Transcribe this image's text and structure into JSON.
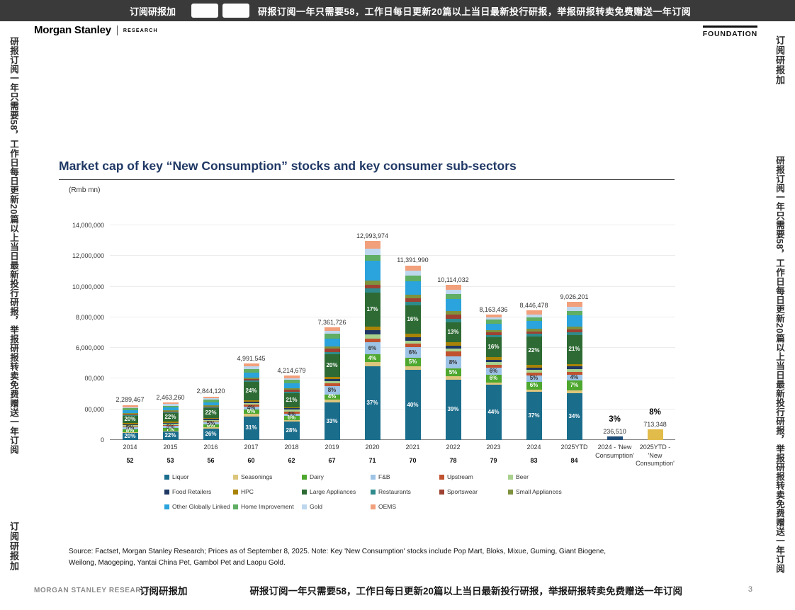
{
  "banner": {
    "left_label": "订阅研报加",
    "message": "研报订阅一年只需要58，工作日每日更新20篇以上当日最新投行研报，举报研报转卖免费赠送一年订阅"
  },
  "watermarks": {
    "long": "研报订阅一年只需要58，工作日每日更新20篇以上当日最新投行研报，举报研报转卖免费赠送一年订阅",
    "short": "订阅研报加"
  },
  "header": {
    "brand": "Morgan Stanley",
    "research": "RESEARCH",
    "foundation": "FOUNDATION"
  },
  "title": {
    "text": "Market cap of key “New Consumption” stocks and key consumer sub-sectors"
  },
  "chart_data": {
    "type": "bar",
    "stacked": true,
    "title": "Market cap of key “New Consumption” stocks and key consumer sub-sectors",
    "unit_label": "(Rmb mn)",
    "ylim": [
      0,
      14000000
    ],
    "y_ticks": [
      {
        "v": 14000000,
        "label": "14,000,000"
      },
      {
        "v": 12000000,
        "label": "12,000,000"
      },
      {
        "v": 10000000,
        "label": "10,000,000"
      },
      {
        "v": 8000000,
        "label": "8,000,000"
      },
      {
        "v": 6000000,
        "label": "6,000,000"
      },
      {
        "v": 4000000,
        "label": "00,000"
      },
      {
        "v": 2000000,
        "label": "00,000"
      },
      {
        "v": 0,
        "label": "0"
      }
    ],
    "series": [
      {
        "name": "Liquor",
        "color": "#1B6D8C"
      },
      {
        "name": "Seasonings",
        "color": "#DCC57C"
      },
      {
        "name": "Dairy",
        "color": "#4EA72E"
      },
      {
        "name": "F&B",
        "color": "#9DC3E6"
      },
      {
        "name": "Upstream",
        "color": "#C0522F"
      },
      {
        "name": "Beer",
        "color": "#A9D18E"
      },
      {
        "name": "Food Retailers",
        "color": "#1F3864"
      },
      {
        "name": "HPC",
        "color": "#A98307"
      },
      {
        "name": "Large Appliances",
        "color": "#2E6B34"
      },
      {
        "name": "Restaurants",
        "color": "#2F8B8B"
      },
      {
        "name": "Sportswear",
        "color": "#9E4132"
      },
      {
        "name": "Small Appliances",
        "color": "#7F923D"
      },
      {
        "name": "Other Globally Linked",
        "color": "#2BA3DC"
      },
      {
        "name": "Home Improvement",
        "color": "#5FAE63"
      },
      {
        "name": "Gold",
        "color": "#BDD7EE"
      },
      {
        "name": "OEMS",
        "color": "#F2A07B"
      }
    ],
    "bars": [
      {
        "label": "2014",
        "count": "52",
        "total": 2289467,
        "total_label": "2,289,467",
        "segments_pct": [
          20,
          3,
          8,
          5,
          3,
          3,
          3,
          3,
          20,
          2,
          3,
          3,
          8,
          6,
          4,
          6
        ],
        "pct_labels": [
          {
            "index": 0,
            "text": "20%",
            "color": "#ffffff"
          },
          {
            "index": 2,
            "text": "8%",
            "color": "#ffffff"
          },
          {
            "index": 3,
            "text": "5%",
            "color": "#333333"
          },
          {
            "index": 8,
            "text": "20%",
            "color": "#ffffff"
          }
        ]
      },
      {
        "label": "2015",
        "count": "53",
        "total": 2463260,
        "total_label": "2,463,260",
        "segments_pct": [
          22,
          3,
          7,
          5,
          3,
          3,
          3,
          3,
          22,
          2,
          3,
          3,
          7,
          5,
          4,
          5
        ],
        "pct_labels": [
          {
            "index": 0,
            "text": "22%",
            "color": "#ffffff"
          },
          {
            "index": 2,
            "text": "7%",
            "color": "#ffffff"
          },
          {
            "index": 3,
            "text": "5%",
            "color": "#333333"
          },
          {
            "index": 8,
            "text": "22%",
            "color": "#ffffff"
          }
        ]
      },
      {
        "label": "2016",
        "count": "56",
        "total": 2844120,
        "total_label": "2,844,120",
        "segments_pct": [
          26,
          3,
          6,
          5,
          3,
          3,
          3,
          2,
          22,
          2,
          2,
          3,
          7,
          5,
          4,
          4
        ],
        "pct_labels": [
          {
            "index": 0,
            "text": "26%",
            "color": "#ffffff"
          },
          {
            "index": 2,
            "text": "6%",
            "color": "#ffffff"
          },
          {
            "index": 3,
            "text": "5%",
            "color": "#333333"
          },
          {
            "index": 8,
            "text": "22%",
            "color": "#ffffff"
          }
        ]
      },
      {
        "label": "2017",
        "count": "60",
        "total": 4991545,
        "total_label": "4,991,545",
        "segments_pct": [
          31,
          3,
          6,
          4,
          2,
          2,
          2,
          2,
          24,
          2,
          2,
          2,
          6,
          5,
          3,
          4
        ],
        "pct_labels": [
          {
            "index": 0,
            "text": "31%",
            "color": "#ffffff"
          },
          {
            "index": 2,
            "text": "6%",
            "color": "#ffffff"
          },
          {
            "index": 3,
            "text": "4%",
            "color": "#333333"
          },
          {
            "index": 8,
            "text": "24%",
            "color": "#ffffff"
          }
        ]
      },
      {
        "label": "2018",
        "count": "62",
        "total": 4214679,
        "total_label": "4,214,679",
        "segments_pct": [
          28,
          3,
          6,
          4,
          3,
          3,
          2,
          2,
          21,
          3,
          3,
          2,
          8,
          5,
          3,
          4
        ],
        "pct_labels": [
          {
            "index": 0,
            "text": "28%",
            "color": "#ffffff"
          },
          {
            "index": 2,
            "text": "6%",
            "color": "#ffffff"
          },
          {
            "index": 3,
            "text": "4%",
            "color": "#333333"
          },
          {
            "index": 8,
            "text": "21%",
            "color": "#ffffff"
          }
        ]
      },
      {
        "label": "2019",
        "count": "67",
        "total": 7361726,
        "total_label": "7,361,726",
        "segments_pct": [
          33,
          3,
          4,
          8,
          2,
          2,
          2,
          2,
          20,
          2,
          3,
          2,
          7,
          4,
          3,
          3
        ],
        "pct_labels": [
          {
            "index": 0,
            "text": "33%",
            "color": "#ffffff"
          },
          {
            "index": 2,
            "text": "4%",
            "color": "#ffffff"
          },
          {
            "index": 3,
            "text": "8%",
            "color": "#333333"
          },
          {
            "index": 8,
            "text": "20%",
            "color": "#ffffff"
          }
        ]
      },
      {
        "label": "2020",
        "count": "71",
        "total": 12993974,
        "total_label": "12,993,974",
        "segments_pct": [
          37,
          2,
          4,
          6,
          2,
          2,
          2,
          2,
          17,
          2,
          2,
          2,
          10,
          3,
          3,
          4
        ],
        "pct_labels": [
          {
            "index": 0,
            "text": "37%",
            "color": "#ffffff"
          },
          {
            "index": 2,
            "text": "4%",
            "color": "#ffffff"
          },
          {
            "index": 3,
            "text": "6%",
            "color": "#333333"
          },
          {
            "index": 8,
            "text": "17%",
            "color": "#ffffff"
          }
        ]
      },
      {
        "label": "2021",
        "count": "70",
        "total": 11391990,
        "total_label": "11,391,990",
        "segments_pct": [
          40,
          2,
          5,
          6,
          2,
          2,
          2,
          2,
          16,
          2,
          2,
          2,
          8,
          3,
          3,
          3
        ],
        "pct_labels": [
          {
            "index": 0,
            "text": "40%",
            "color": "#ffffff"
          },
          {
            "index": 2,
            "text": "5%",
            "color": "#ffffff"
          },
          {
            "index": 3,
            "text": "6%",
            "color": "#333333"
          },
          {
            "index": 8,
            "text": "16%",
            "color": "#ffffff"
          }
        ]
      },
      {
        "label": "2022",
        "count": "78",
        "total": 10114032,
        "total_label": "10,114,032",
        "segments_pct": [
          39,
          2,
          5,
          8,
          3,
          2,
          2,
          2,
          13,
          2,
          3,
          2,
          8,
          3,
          3,
          3
        ],
        "pct_labels": [
          {
            "index": 0,
            "text": "39%",
            "color": "#ffffff"
          },
          {
            "index": 2,
            "text": "5%",
            "color": "#ffffff"
          },
          {
            "index": 3,
            "text": "8%",
            "color": "#333333"
          },
          {
            "index": 8,
            "text": "13%",
            "color": "#ffffff"
          }
        ]
      },
      {
        "label": "2023",
        "count": "79",
        "total": 8163436,
        "total_label": "8,163,436",
        "segments_pct": [
          44,
          2,
          6,
          6,
          2,
          2,
          2,
          2,
          16,
          2,
          2,
          2,
          5,
          3,
          2,
          2
        ],
        "pct_labels": [
          {
            "index": 0,
            "text": "44%",
            "color": "#ffffff"
          },
          {
            "index": 2,
            "text": "6%",
            "color": "#ffffff"
          },
          {
            "index": 3,
            "text": "6%",
            "color": "#333333"
          },
          {
            "index": 8,
            "text": "16%",
            "color": "#ffffff"
          }
        ]
      },
      {
        "label": "2024",
        "count": "83",
        "total": 8446478,
        "total_label": "8,446,478",
        "segments_pct": [
          37,
          2,
          6,
          5,
          2,
          2,
          2,
          2,
          22,
          2,
          2,
          2,
          6,
          3,
          2,
          3
        ],
        "pct_labels": [
          {
            "index": 0,
            "text": "37%",
            "color": "#ffffff"
          },
          {
            "index": 2,
            "text": "6%",
            "color": "#ffffff"
          },
          {
            "index": 3,
            "text": "5%",
            "color": "#333333"
          },
          {
            "index": 8,
            "text": "22%",
            "color": "#ffffff"
          }
        ]
      },
      {
        "label": "2025YTD",
        "count": "84",
        "total": 9026201,
        "total_label": "9,026,201",
        "segments_pct": [
          34,
          2,
          7,
          4,
          2,
          2,
          2,
          2,
          21,
          2,
          2,
          2,
          8,
          3,
          3,
          4
        ],
        "pct_labels": [
          {
            "index": 0,
            "text": "34%",
            "color": "#ffffff"
          },
          {
            "index": 2,
            "text": "7%",
            "color": "#ffffff"
          },
          {
            "index": 3,
            "text": "4%",
            "color": "#333333"
          },
          {
            "index": 8,
            "text": "21%",
            "color": "#ffffff"
          }
        ]
      },
      {
        "label": "2024 - 'New Consumption'",
        "count": "",
        "total": 236510,
        "total_label": "236,510",
        "big_pct": "3%",
        "solid_color": "#1F4E79"
      },
      {
        "label": "2025YTD - 'New Consumption'",
        "count": "",
        "total": 713348,
        "total_label": "713,348",
        "big_pct": "8%",
        "solid_color": "#E2BC4A"
      }
    ]
  },
  "source": {
    "text": "Source: Factset, Morgan Stanley Research; Prices as of September 8, 2025. Note: Key 'New Consumption' stocks include Pop Mart, Bloks, Mixue, Guming, Giant Biogene, Weilong, Maogeping, Yantai China Pet, Gambol Pet and Laopu Gold."
  },
  "footer": {
    "brand": "MORGAN STANLEY RESEARCH",
    "page": "3"
  }
}
